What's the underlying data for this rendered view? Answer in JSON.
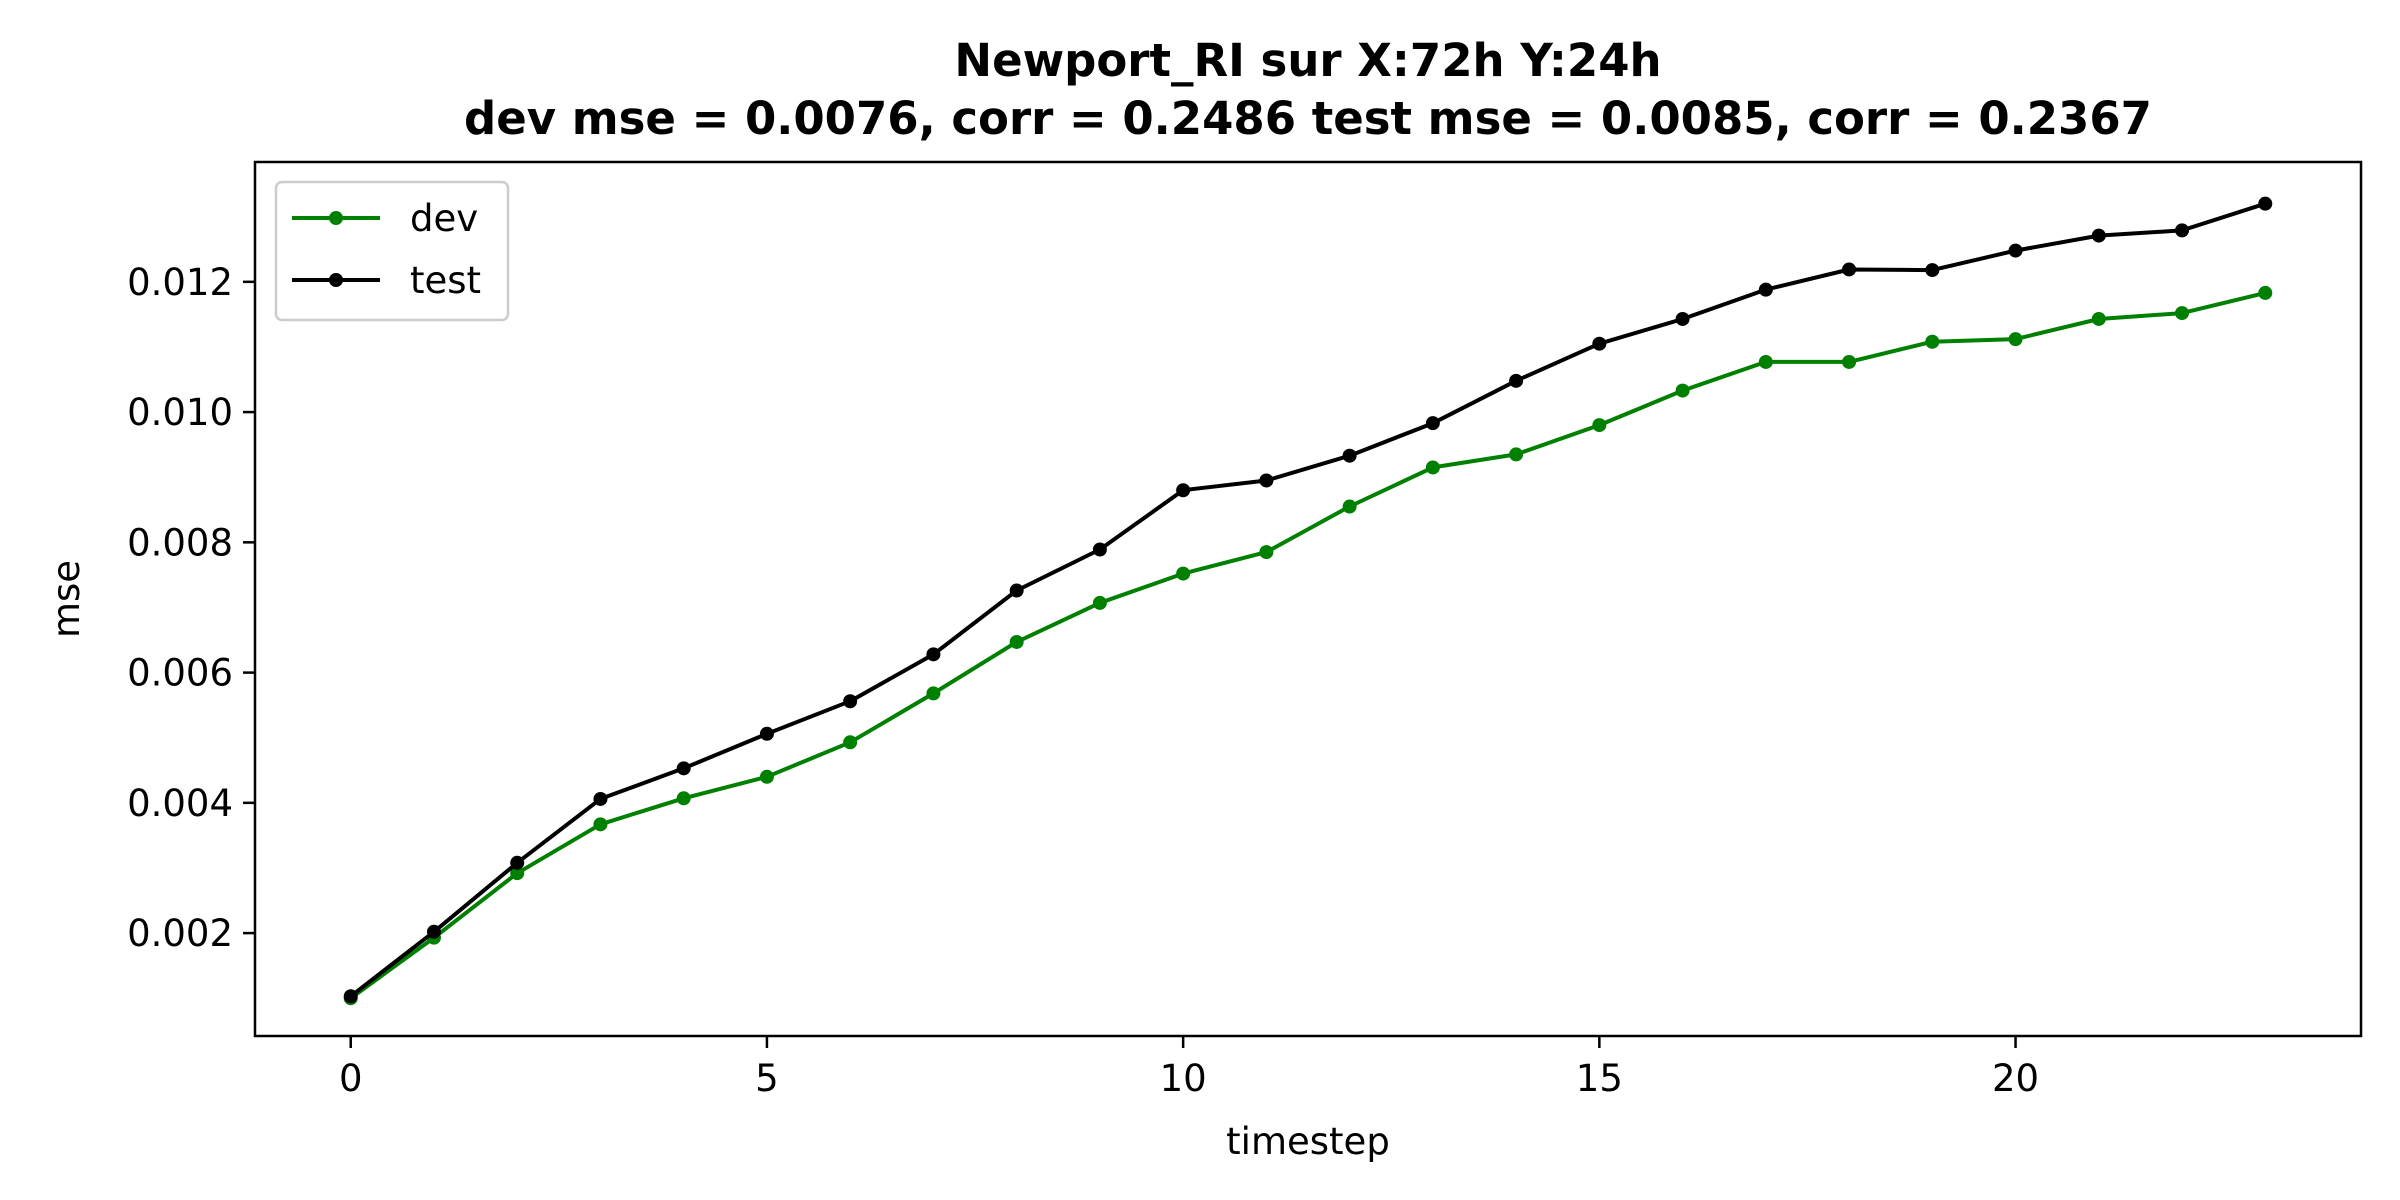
{
  "chart_data": {
    "type": "line",
    "title": "Newport_RI   sur   X:72h   Y:24h",
    "subtitle": "dev mse = 0.0076, corr = 0.2486   test mse = 0.0085, corr = 0.2367",
    "xlabel": "timestep",
    "ylabel": "mse",
    "xlim": [
      -1.15,
      24.15
    ],
    "ylim": [
      0.00042,
      0.01384
    ],
    "x_ticks": [
      0,
      5,
      10,
      15,
      20
    ],
    "x_tick_labels": [
      "0",
      "5",
      "10",
      "15",
      "20"
    ],
    "y_ticks": [
      0.002,
      0.004,
      0.006,
      0.008,
      0.01,
      0.012
    ],
    "y_tick_labels": [
      "0.002",
      "0.004",
      "0.006",
      "0.008",
      "0.010",
      "0.012"
    ],
    "grid": false,
    "legend_position": "top-left",
    "x": [
      0,
      1,
      2,
      3,
      4,
      5,
      6,
      7,
      8,
      9,
      10,
      11,
      12,
      13,
      14,
      15,
      16,
      17,
      18,
      19,
      20,
      21,
      22,
      23
    ],
    "series": [
      {
        "name": "dev",
        "color": "#008000",
        "marker": "circle",
        "values": [
          0.001,
          0.00193,
          0.00292,
          0.00367,
          0.00407,
          0.0044,
          0.00493,
          0.00568,
          0.00647,
          0.00707,
          0.00752,
          0.00785,
          0.00855,
          0.00915,
          0.00935,
          0.0098,
          0.01033,
          0.01077,
          0.01077,
          0.01108,
          0.01112,
          0.01143,
          0.01152,
          0.01183
        ]
      },
      {
        "name": "test",
        "color": "#000000",
        "marker": "circle",
        "values": [
          0.00103,
          0.00202,
          0.00308,
          0.00406,
          0.00453,
          0.00506,
          0.00556,
          0.00628,
          0.00726,
          0.00789,
          0.0088,
          0.00895,
          0.00933,
          0.00983,
          0.01048,
          0.01105,
          0.01143,
          0.01188,
          0.01219,
          0.01218,
          0.01248,
          0.01271,
          0.01279,
          0.0132
        ]
      }
    ]
  }
}
